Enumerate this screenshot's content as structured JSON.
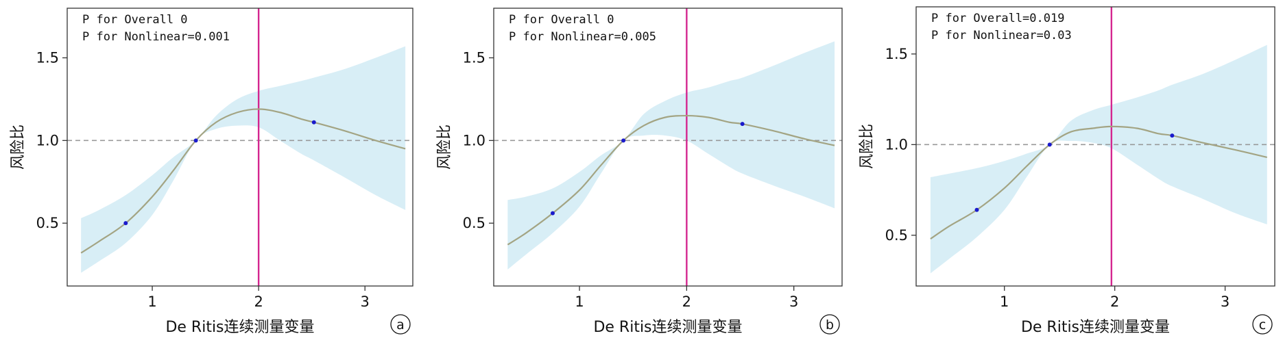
{
  "chart_data": [
    {
      "type": "line",
      "panel_label": "a",
      "annotations": [
        "P for Overall 0",
        "P for Nonlinear=0.001"
      ],
      "xlabel": "De Ritis连续测量变量",
      "ylabel": "风险比",
      "xlim": [
        0.2,
        3.45
      ],
      "ylim": [
        0.12,
        1.8
      ],
      "xticks": [
        1,
        2,
        3
      ],
      "yticks": [
        0.5,
        1.0,
        1.5
      ],
      "yticklabels": [
        "0.5",
        "1.0",
        "1.5"
      ],
      "reference_line_y": 1.0,
      "vertical_line_x": 2.0,
      "colors": {
        "curve": "#a3a483",
        "band": "#d8eef6",
        "ref": "#999999",
        "vline": "#d4268f",
        "point": "#1a1acc"
      },
      "series": [
        {
          "x": [
            0.33,
            0.5,
            0.75,
            1.0,
            1.2,
            1.41,
            1.6,
            1.8,
            2.0,
            2.2,
            2.4,
            2.52,
            2.8,
            3.1,
            3.38
          ],
          "y": [
            0.32,
            0.39,
            0.5,
            0.66,
            0.82,
            1.0,
            1.11,
            1.17,
            1.19,
            1.17,
            1.13,
            1.11,
            1.06,
            1.0,
            0.95
          ],
          "lower": [
            0.2,
            0.27,
            0.38,
            0.55,
            0.76,
            1.0,
            1.07,
            1.09,
            1.08,
            1.0,
            0.92,
            0.88,
            0.78,
            0.67,
            0.58
          ],
          "upper": [
            0.53,
            0.58,
            0.67,
            0.79,
            0.9,
            1.0,
            1.15,
            1.25,
            1.3,
            1.33,
            1.36,
            1.38,
            1.43,
            1.5,
            1.57
          ]
        }
      ],
      "points": {
        "x": [
          0.75,
          1.41,
          2.52
        ],
        "y": [
          0.5,
          1.0,
          1.11
        ]
      }
    },
    {
      "type": "line",
      "panel_label": "b",
      "annotations": [
        "P for Overall 0",
        "P for Nonlinear=0.005"
      ],
      "xlabel": "De Ritis连续测量变量",
      "ylabel": "风险比",
      "xlim": [
        0.2,
        3.45
      ],
      "ylim": [
        0.12,
        1.8
      ],
      "xticks": [
        1,
        2,
        3
      ],
      "yticks": [
        0.5,
        1.0,
        1.5
      ],
      "yticklabels": [
        "0.5",
        "1.0",
        "1.5"
      ],
      "reference_line_y": 1.0,
      "vertical_line_x": 2.0,
      "colors": {
        "curve": "#a3a483",
        "band": "#d8eef6",
        "ref": "#999999",
        "vline": "#d4268f",
        "point": "#1a1acc"
      },
      "series": [
        {
          "x": [
            0.33,
            0.5,
            0.75,
            1.0,
            1.2,
            1.41,
            1.6,
            1.8,
            2.0,
            2.2,
            2.4,
            2.52,
            2.8,
            3.1,
            3.38
          ],
          "y": [
            0.37,
            0.44,
            0.56,
            0.7,
            0.85,
            1.0,
            1.09,
            1.14,
            1.15,
            1.14,
            1.11,
            1.1,
            1.06,
            1.01,
            0.97
          ],
          "lower": [
            0.22,
            0.31,
            0.44,
            0.6,
            0.8,
            1.0,
            1.03,
            1.03,
            1.0,
            0.92,
            0.84,
            0.8,
            0.73,
            0.66,
            0.59
          ],
          "upper": [
            0.64,
            0.66,
            0.71,
            0.81,
            0.91,
            1.0,
            1.16,
            1.24,
            1.29,
            1.32,
            1.36,
            1.38,
            1.45,
            1.53,
            1.6
          ]
        }
      ],
      "points": {
        "x": [
          0.75,
          1.41,
          2.52
        ],
        "y": [
          0.56,
          1.0,
          1.1
        ]
      }
    },
    {
      "type": "line",
      "panel_label": "c",
      "annotations": [
        "P for Overall=0.019",
        "P for Nonlinear=0.03"
      ],
      "xlabel": "De Ritis连续测量变量",
      "ylabel": "风险比",
      "xlim": [
        0.2,
        3.45
      ],
      "ylim": [
        0.22,
        1.76
      ],
      "xticks": [
        1,
        2,
        3
      ],
      "yticks": [
        0.5,
        1.0,
        1.5
      ],
      "yticklabels": [
        "0.5",
        "1.0",
        "1.5"
      ],
      "reference_line_y": 1.0,
      "vertical_line_x": 1.97,
      "colors": {
        "curve": "#a3a483",
        "band": "#d8eef6",
        "ref": "#999999",
        "vline": "#d4268f",
        "point": "#1a1acc"
      },
      "series": [
        {
          "x": [
            0.33,
            0.5,
            0.75,
            1.0,
            1.2,
            1.41,
            1.6,
            1.8,
            1.97,
            2.2,
            2.4,
            2.52,
            2.8,
            3.1,
            3.38
          ],
          "y": [
            0.48,
            0.55,
            0.64,
            0.76,
            0.88,
            1.0,
            1.07,
            1.09,
            1.1,
            1.09,
            1.06,
            1.05,
            1.01,
            0.97,
            0.93
          ],
          "lower": [
            0.29,
            0.37,
            0.49,
            0.64,
            0.82,
            1.0,
            1.02,
            1.01,
            0.98,
            0.89,
            0.81,
            0.77,
            0.7,
            0.62,
            0.56
          ],
          "upper": [
            0.82,
            0.84,
            0.87,
            0.91,
            0.95,
            1.0,
            1.13,
            1.19,
            1.22,
            1.26,
            1.3,
            1.33,
            1.39,
            1.47,
            1.55
          ]
        }
      ],
      "points": {
        "x": [
          0.75,
          1.41,
          2.52
        ],
        "y": [
          0.64,
          1.0,
          1.05
        ]
      }
    }
  ]
}
